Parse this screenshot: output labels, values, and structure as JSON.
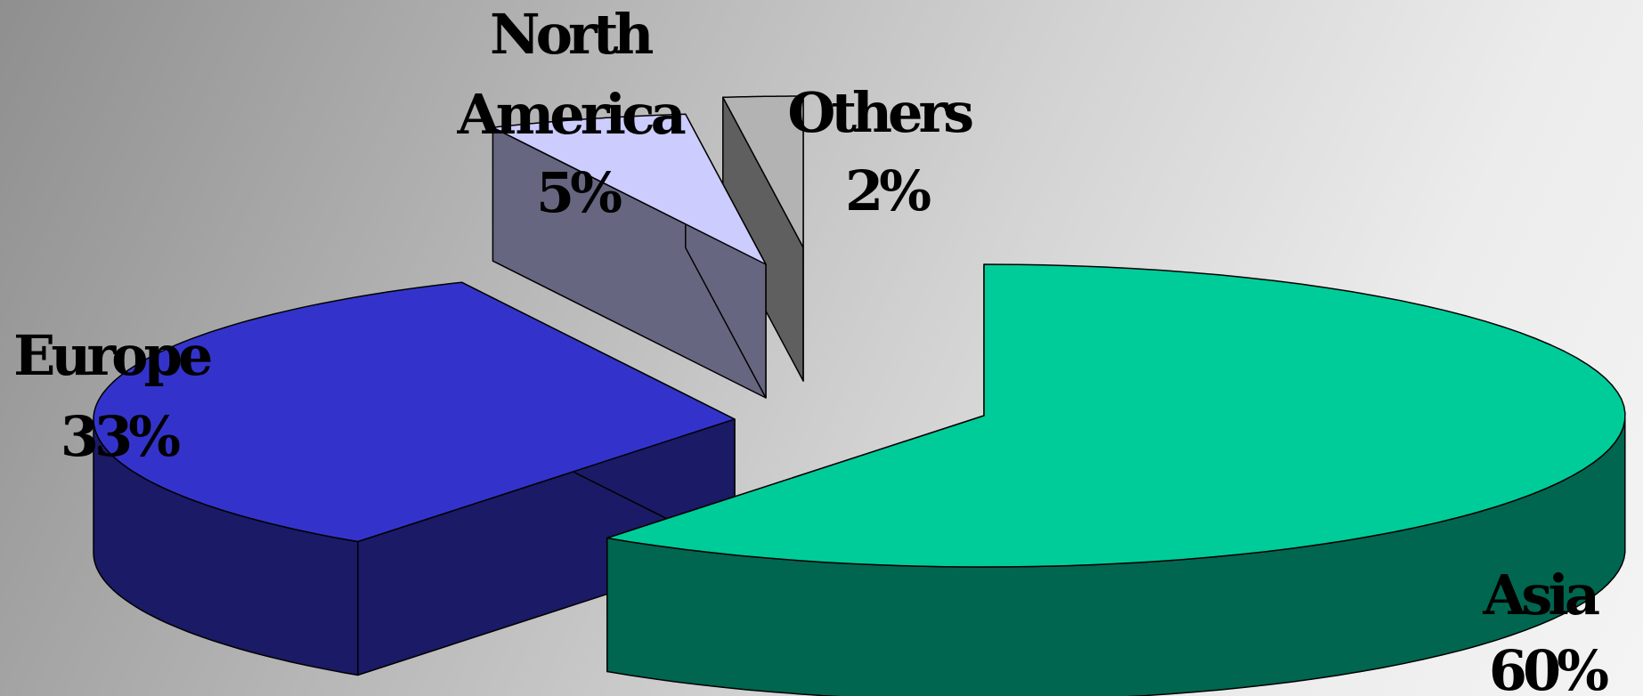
{
  "chart_data": {
    "type": "pie",
    "style": "3d-exploded",
    "categories": [
      "Asia",
      "Europe",
      "North America",
      "Others"
    ],
    "values": [
      60,
      33,
      5,
      2
    ],
    "labels": [
      {
        "name": "Asia",
        "pct": "60%"
      },
      {
        "name": "Europe",
        "pct": "33%"
      },
      {
        "name": "North America",
        "name_lines": [
          "North",
          "America"
        ],
        "pct": "5%"
      },
      {
        "name": "Others",
        "pct": "2%"
      }
    ],
    "colors": {
      "Asia": {
        "top": "#00cc99",
        "side": "#006650"
      },
      "Europe": {
        "top": "#3333cc",
        "side": "#1a1a66"
      },
      "North America": {
        "top": "#ccccff",
        "side": "#666680"
      },
      "Others": {
        "top": "#b3b3b3",
        "side": "#5f5f5f"
      }
    },
    "background": {
      "from": "#8f8f8f",
      "to": "#f4f4f4"
    }
  }
}
